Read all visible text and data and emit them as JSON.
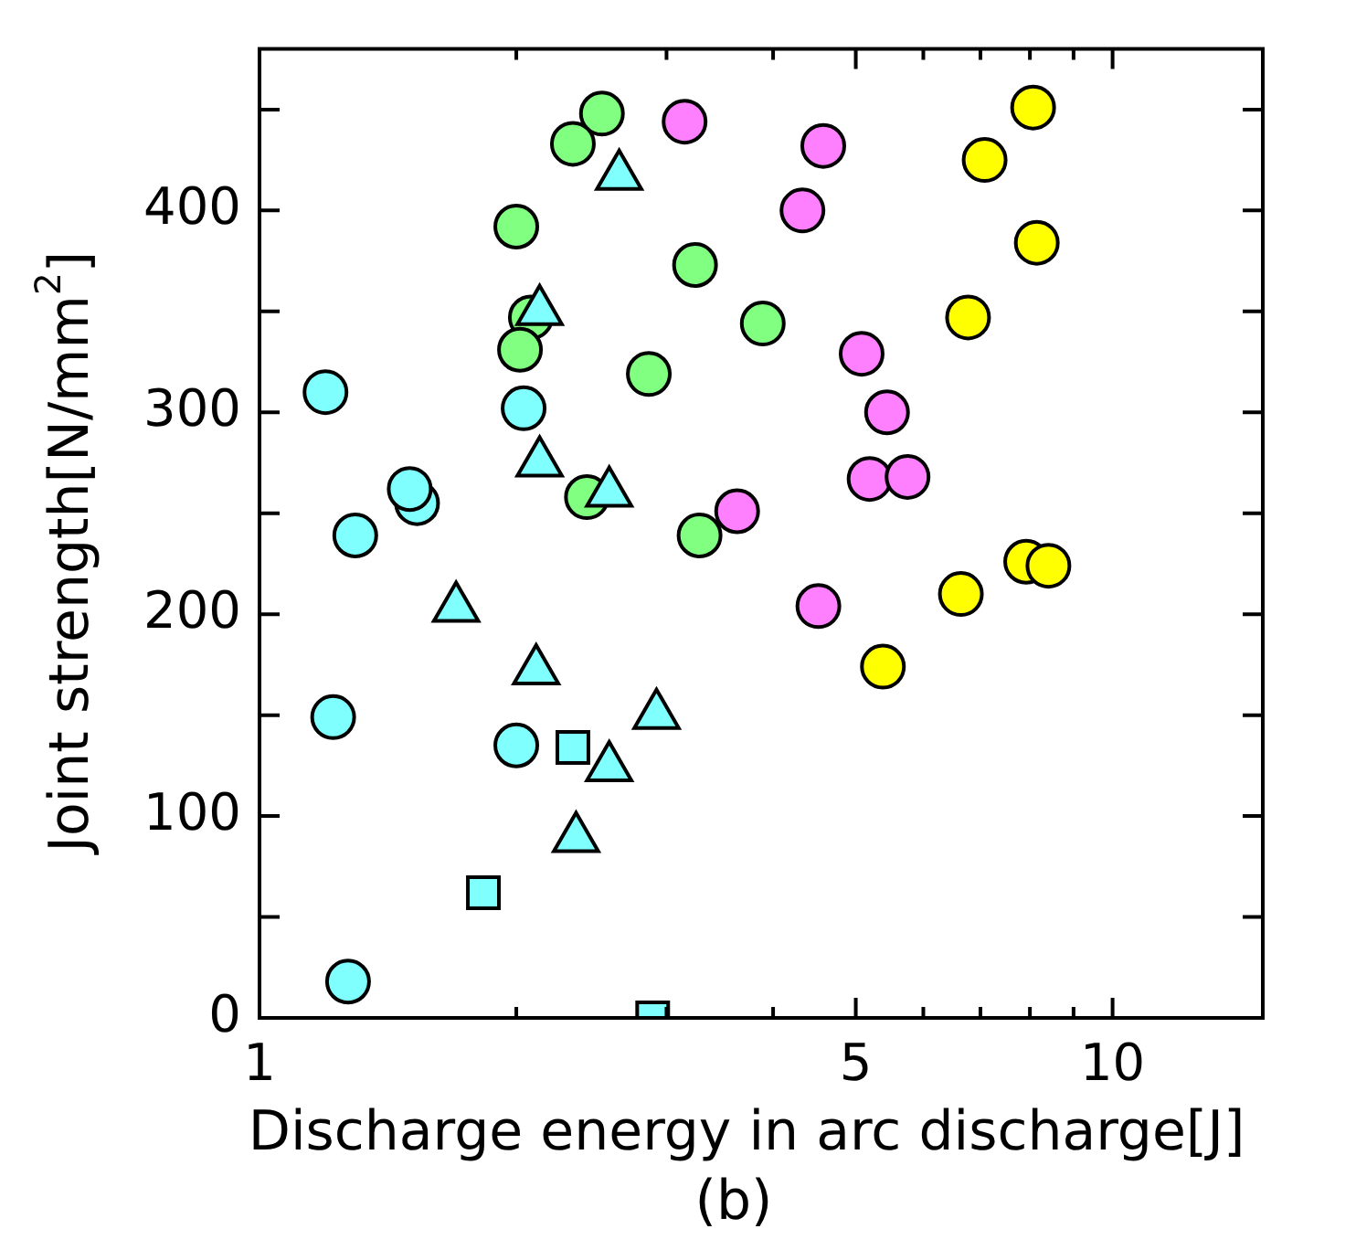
{
  "chart_data": {
    "type": "scatter",
    "xlabel": "Discharge energy in arc discharge[J]",
    "ylabel": "Joint strength[N/mm$^{2}$]",
    "annotations": [
      "(b)"
    ],
    "log": "x",
    "grid": false,
    "legend": false,
    "xlim": [
      1,
      15
    ],
    "xticks": [
      1,
      {
        "value": 2,
        "label": null
      },
      {
        "value": 3,
        "label": null
      },
      {
        "value": 4,
        "label": null
      },
      5,
      {
        "value": 6,
        "label": null
      },
      {
        "value": 7,
        "label": null
      },
      {
        "value": 8,
        "label": null
      },
      {
        "value": 9,
        "label": null
      },
      10
    ],
    "ylim": [
      0,
      480
    ],
    "yticks": [
      0,
      {
        "value": 50,
        "label": null
      },
      100,
      {
        "value": 150,
        "label": null
      },
      200,
      {
        "value": 250,
        "label": null
      },
      300,
      {
        "value": 350,
        "label": null
      },
      400,
      {
        "value": 450,
        "label": null
      }
    ],
    "series": [
      {
        "color": "#80ffff",
        "marker": "circle",
        "x": [
          1.195,
          2.04,
          1.53,
          1.5,
          1.295,
          1.22,
          2.0,
          1.27
        ],
        "values": [
          310,
          302,
          255,
          262,
          239,
          149,
          135,
          18
        ]
      },
      {
        "color": "#80ffff",
        "marker": "triangle",
        "x": [
          2.64,
          2.13,
          2.13,
          2.57,
          1.7,
          2.11,
          2.92,
          2.57,
          2.35
        ],
        "values": [
          417,
          350,
          275,
          260,
          203,
          172,
          150,
          124,
          89
        ]
      },
      {
        "color": "#80ffff",
        "marker": "square",
        "x": [
          2.33,
          1.83,
          2.89
        ],
        "values": [
          134,
          62,
          0
        ]
      },
      {
        "color": "#80ff80",
        "marker": "circle",
        "x": [
          2.52,
          2.33,
          2.0,
          3.24,
          3.89,
          2.08,
          2.02,
          2.86,
          2.42,
          3.28
        ],
        "values": [
          448,
          433,
          392,
          373,
          344,
          347,
          331,
          319,
          258,
          239
        ]
      },
      {
        "color": "#ff80ff",
        "marker": "circle",
        "x": [
          3.15,
          4.58,
          4.33,
          5.08,
          5.44,
          5.19,
          5.75,
          3.63,
          4.52
        ],
        "values": [
          444,
          432,
          400,
          329,
          300,
          267,
          268,
          251,
          204
        ]
      },
      {
        "color": "#ffff00",
        "marker": "circle",
        "x": [
          8.07,
          7.08,
          8.15,
          6.77,
          7.92,
          8.41,
          6.64,
          5.38
        ],
        "values": [
          451,
          425,
          384,
          347,
          226,
          224,
          210,
          174
        ]
      }
    ]
  }
}
